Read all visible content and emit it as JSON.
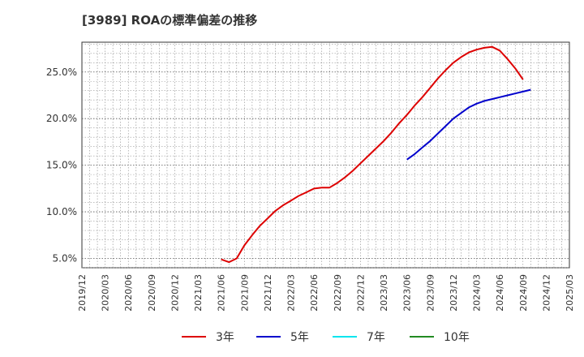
{
  "title": "[3989]  ROAの標準偏差の推移",
  "chart_data": {
    "type": "line",
    "title": "[3989]  ROAの標準偏差の推移",
    "xlabel": "",
    "ylabel": "",
    "x_ticks": [
      "2019/12",
      "2020/03",
      "2020/06",
      "2020/09",
      "2020/12",
      "2021/03",
      "2021/06",
      "2021/09",
      "2021/12",
      "2022/03",
      "2022/06",
      "2022/09",
      "2022/12",
      "2023/03",
      "2023/06",
      "2023/09",
      "2023/12",
      "2024/03",
      "2024/06",
      "2024/09",
      "2024/12",
      "2025/03"
    ],
    "y_ticks": [
      "5.0%",
      "10.0%",
      "15.0%",
      "20.0%",
      "25.0%"
    ],
    "y_tick_values": [
      5,
      10,
      15,
      20,
      25
    ],
    "xlim": [
      "2019/12",
      "2025/03"
    ],
    "ylim": [
      4.0,
      28.2
    ],
    "grid": true,
    "legend_position": "bottom",
    "series": [
      {
        "name": "3年",
        "color": "#dd0000",
        "points": [
          [
            "2021/06",
            4.9
          ],
          [
            "2021/07",
            4.6
          ],
          [
            "2021/08",
            5.0
          ],
          [
            "2021/09",
            6.4
          ],
          [
            "2021/10",
            7.5
          ],
          [
            "2021/11",
            8.5
          ],
          [
            "2021/12",
            9.3
          ],
          [
            "2022/01",
            10.1
          ],
          [
            "2022/02",
            10.7
          ],
          [
            "2022/03",
            11.2
          ],
          [
            "2022/04",
            11.7
          ],
          [
            "2022/05",
            12.1
          ],
          [
            "2022/06",
            12.5
          ],
          [
            "2022/07",
            12.6
          ],
          [
            "2022/08",
            12.6
          ],
          [
            "2022/09",
            13.1
          ],
          [
            "2022/10",
            13.7
          ],
          [
            "2022/11",
            14.4
          ],
          [
            "2022/12",
            15.2
          ],
          [
            "2023/01",
            16.0
          ],
          [
            "2023/02",
            16.8
          ],
          [
            "2023/03",
            17.6
          ],
          [
            "2023/04",
            18.5
          ],
          [
            "2023/05",
            19.5
          ],
          [
            "2023/06",
            20.4
          ],
          [
            "2023/07",
            21.4
          ],
          [
            "2023/08",
            22.3
          ],
          [
            "2023/09",
            23.3
          ],
          [
            "2023/10",
            24.3
          ],
          [
            "2023/11",
            25.2
          ],
          [
            "2023/12",
            26.0
          ],
          [
            "2024/01",
            26.6
          ],
          [
            "2024/02",
            27.1
          ],
          [
            "2024/03",
            27.4
          ],
          [
            "2024/04",
            27.6
          ],
          [
            "2024/05",
            27.7
          ],
          [
            "2024/06",
            27.3
          ],
          [
            "2024/07",
            26.4
          ],
          [
            "2024/08",
            25.4
          ],
          [
            "2024/09",
            24.2
          ]
        ]
      },
      {
        "name": "5年",
        "color": "#0000cc",
        "points": [
          [
            "2023/06",
            15.6
          ],
          [
            "2023/07",
            16.2
          ],
          [
            "2023/08",
            16.9
          ],
          [
            "2023/09",
            17.6
          ],
          [
            "2023/10",
            18.4
          ],
          [
            "2023/11",
            19.2
          ],
          [
            "2023/12",
            20.0
          ],
          [
            "2024/01",
            20.6
          ],
          [
            "2024/02",
            21.2
          ],
          [
            "2024/03",
            21.6
          ],
          [
            "2024/04",
            21.9
          ],
          [
            "2024/05",
            22.1
          ],
          [
            "2024/06",
            22.3
          ],
          [
            "2024/07",
            22.5
          ],
          [
            "2024/08",
            22.7
          ],
          [
            "2024/09",
            22.9
          ],
          [
            "2024/10",
            23.1
          ]
        ]
      },
      {
        "name": "7年",
        "color": "#00e5ee",
        "points": []
      },
      {
        "name": "10年",
        "color": "#228b22",
        "points": []
      }
    ]
  }
}
